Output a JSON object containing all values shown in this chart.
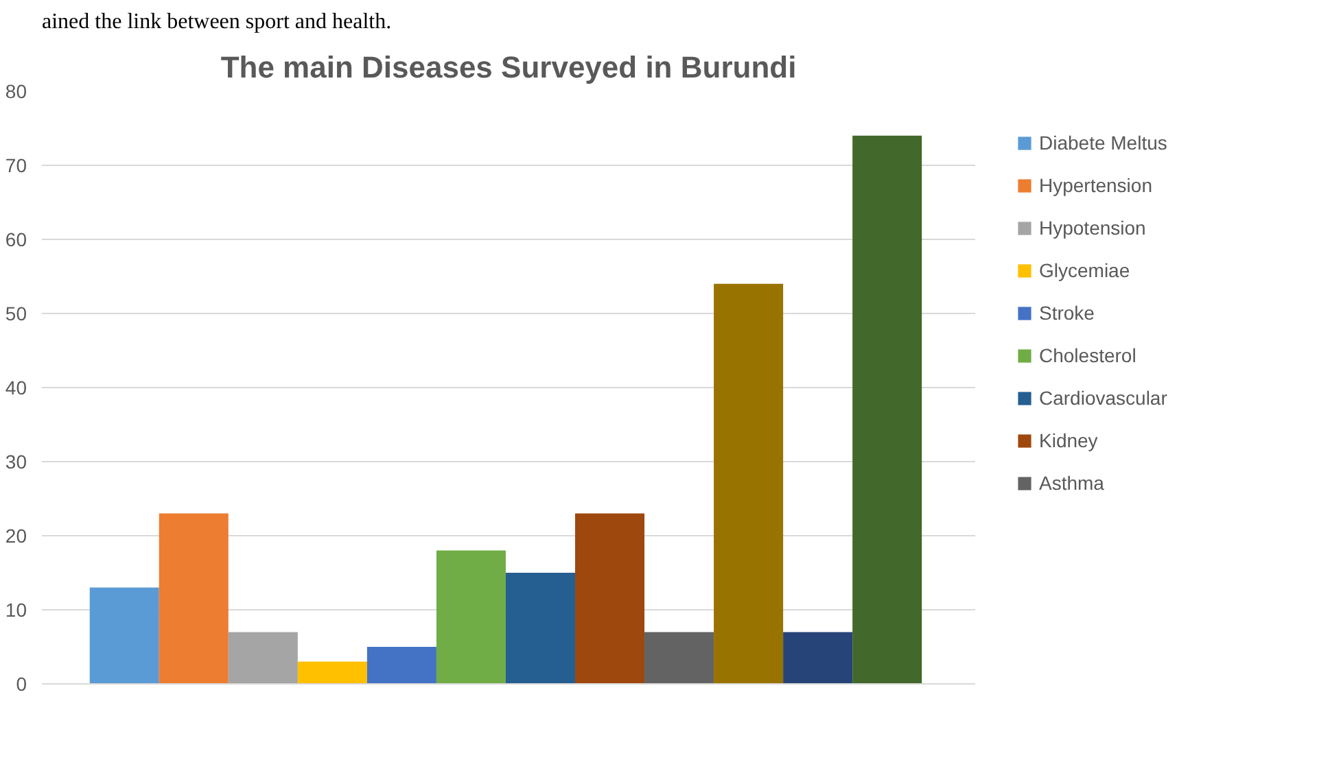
{
  "chart_data": {
    "type": "bar",
    "title": "The main Diseases Surveyed in Burundi",
    "annotations": [
      "ained the link between sport and health."
    ],
    "categories": [
      null
    ],
    "ylim": [
      0,
      80
    ],
    "yticks": [
      0,
      10,
      20,
      30,
      40,
      50,
      60,
      70,
      80
    ],
    "grid": "y",
    "legend": "right",
    "tick_labels": "y",
    "series": [
      {
        "name": "Diabete Meltus",
        "color": "#5b9bd5",
        "values": [
          13
        ]
      },
      {
        "name": "Hypertension",
        "color": "#ed7d31",
        "values": [
          23
        ]
      },
      {
        "name": "Hypotension",
        "color": "#a5a5a5",
        "values": [
          7
        ]
      },
      {
        "name": "Glycemiae",
        "color": "#ffc000",
        "values": [
          3
        ]
      },
      {
        "name": "Stroke",
        "color": "#4472c4",
        "values": [
          5
        ]
      },
      {
        "name": "Cholesterol",
        "color": "#70ad47",
        "values": [
          18
        ]
      },
      {
        "name": "Cardiovascular",
        "color": "#255e91",
        "values": [
          15
        ]
      },
      {
        "name": "Kidney",
        "color": "#9e480e",
        "values": [
          23
        ]
      },
      {
        "name": "Asthma",
        "color": "#636363",
        "values": [
          7
        ]
      },
      {
        "color": "#997300",
        "values": [
          54
        ]
      },
      {
        "color": "#264478",
        "values": [
          7
        ]
      },
      {
        "color": "#43682b",
        "values": [
          74
        ]
      }
    ]
  }
}
